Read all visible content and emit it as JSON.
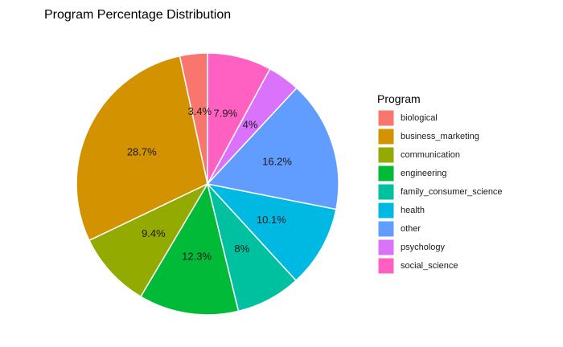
{
  "chart_data": {
    "type": "pie",
    "title": "Program Percentage Distribution",
    "legend_title": "Program",
    "legend_position": "right",
    "slices": [
      {
        "category": "biological",
        "value": 3.4,
        "label": "3.4%",
        "color": "#F8766D"
      },
      {
        "category": "business_marketing",
        "value": 28.7,
        "label": "28.7%",
        "color": "#D39200"
      },
      {
        "category": "communication",
        "value": 9.4,
        "label": "9.4%",
        "color": "#93AA00"
      },
      {
        "category": "engineering",
        "value": 12.3,
        "label": "12.3%",
        "color": "#00BA38"
      },
      {
        "category": "family_consumer_science",
        "value": 8.0,
        "label": "8%",
        "color": "#00C19F"
      },
      {
        "category": "health",
        "value": 10.1,
        "label": "10.1%",
        "color": "#00B9E3"
      },
      {
        "category": "other",
        "value": 16.2,
        "label": "16.2%",
        "color": "#619CFF"
      },
      {
        "category": "psychology",
        "value": 4.0,
        "label": "4%",
        "color": "#DB72FB"
      },
      {
        "category": "social_science",
        "value": 7.9,
        "label": "7.9%",
        "color": "#FF61C3"
      }
    ]
  }
}
